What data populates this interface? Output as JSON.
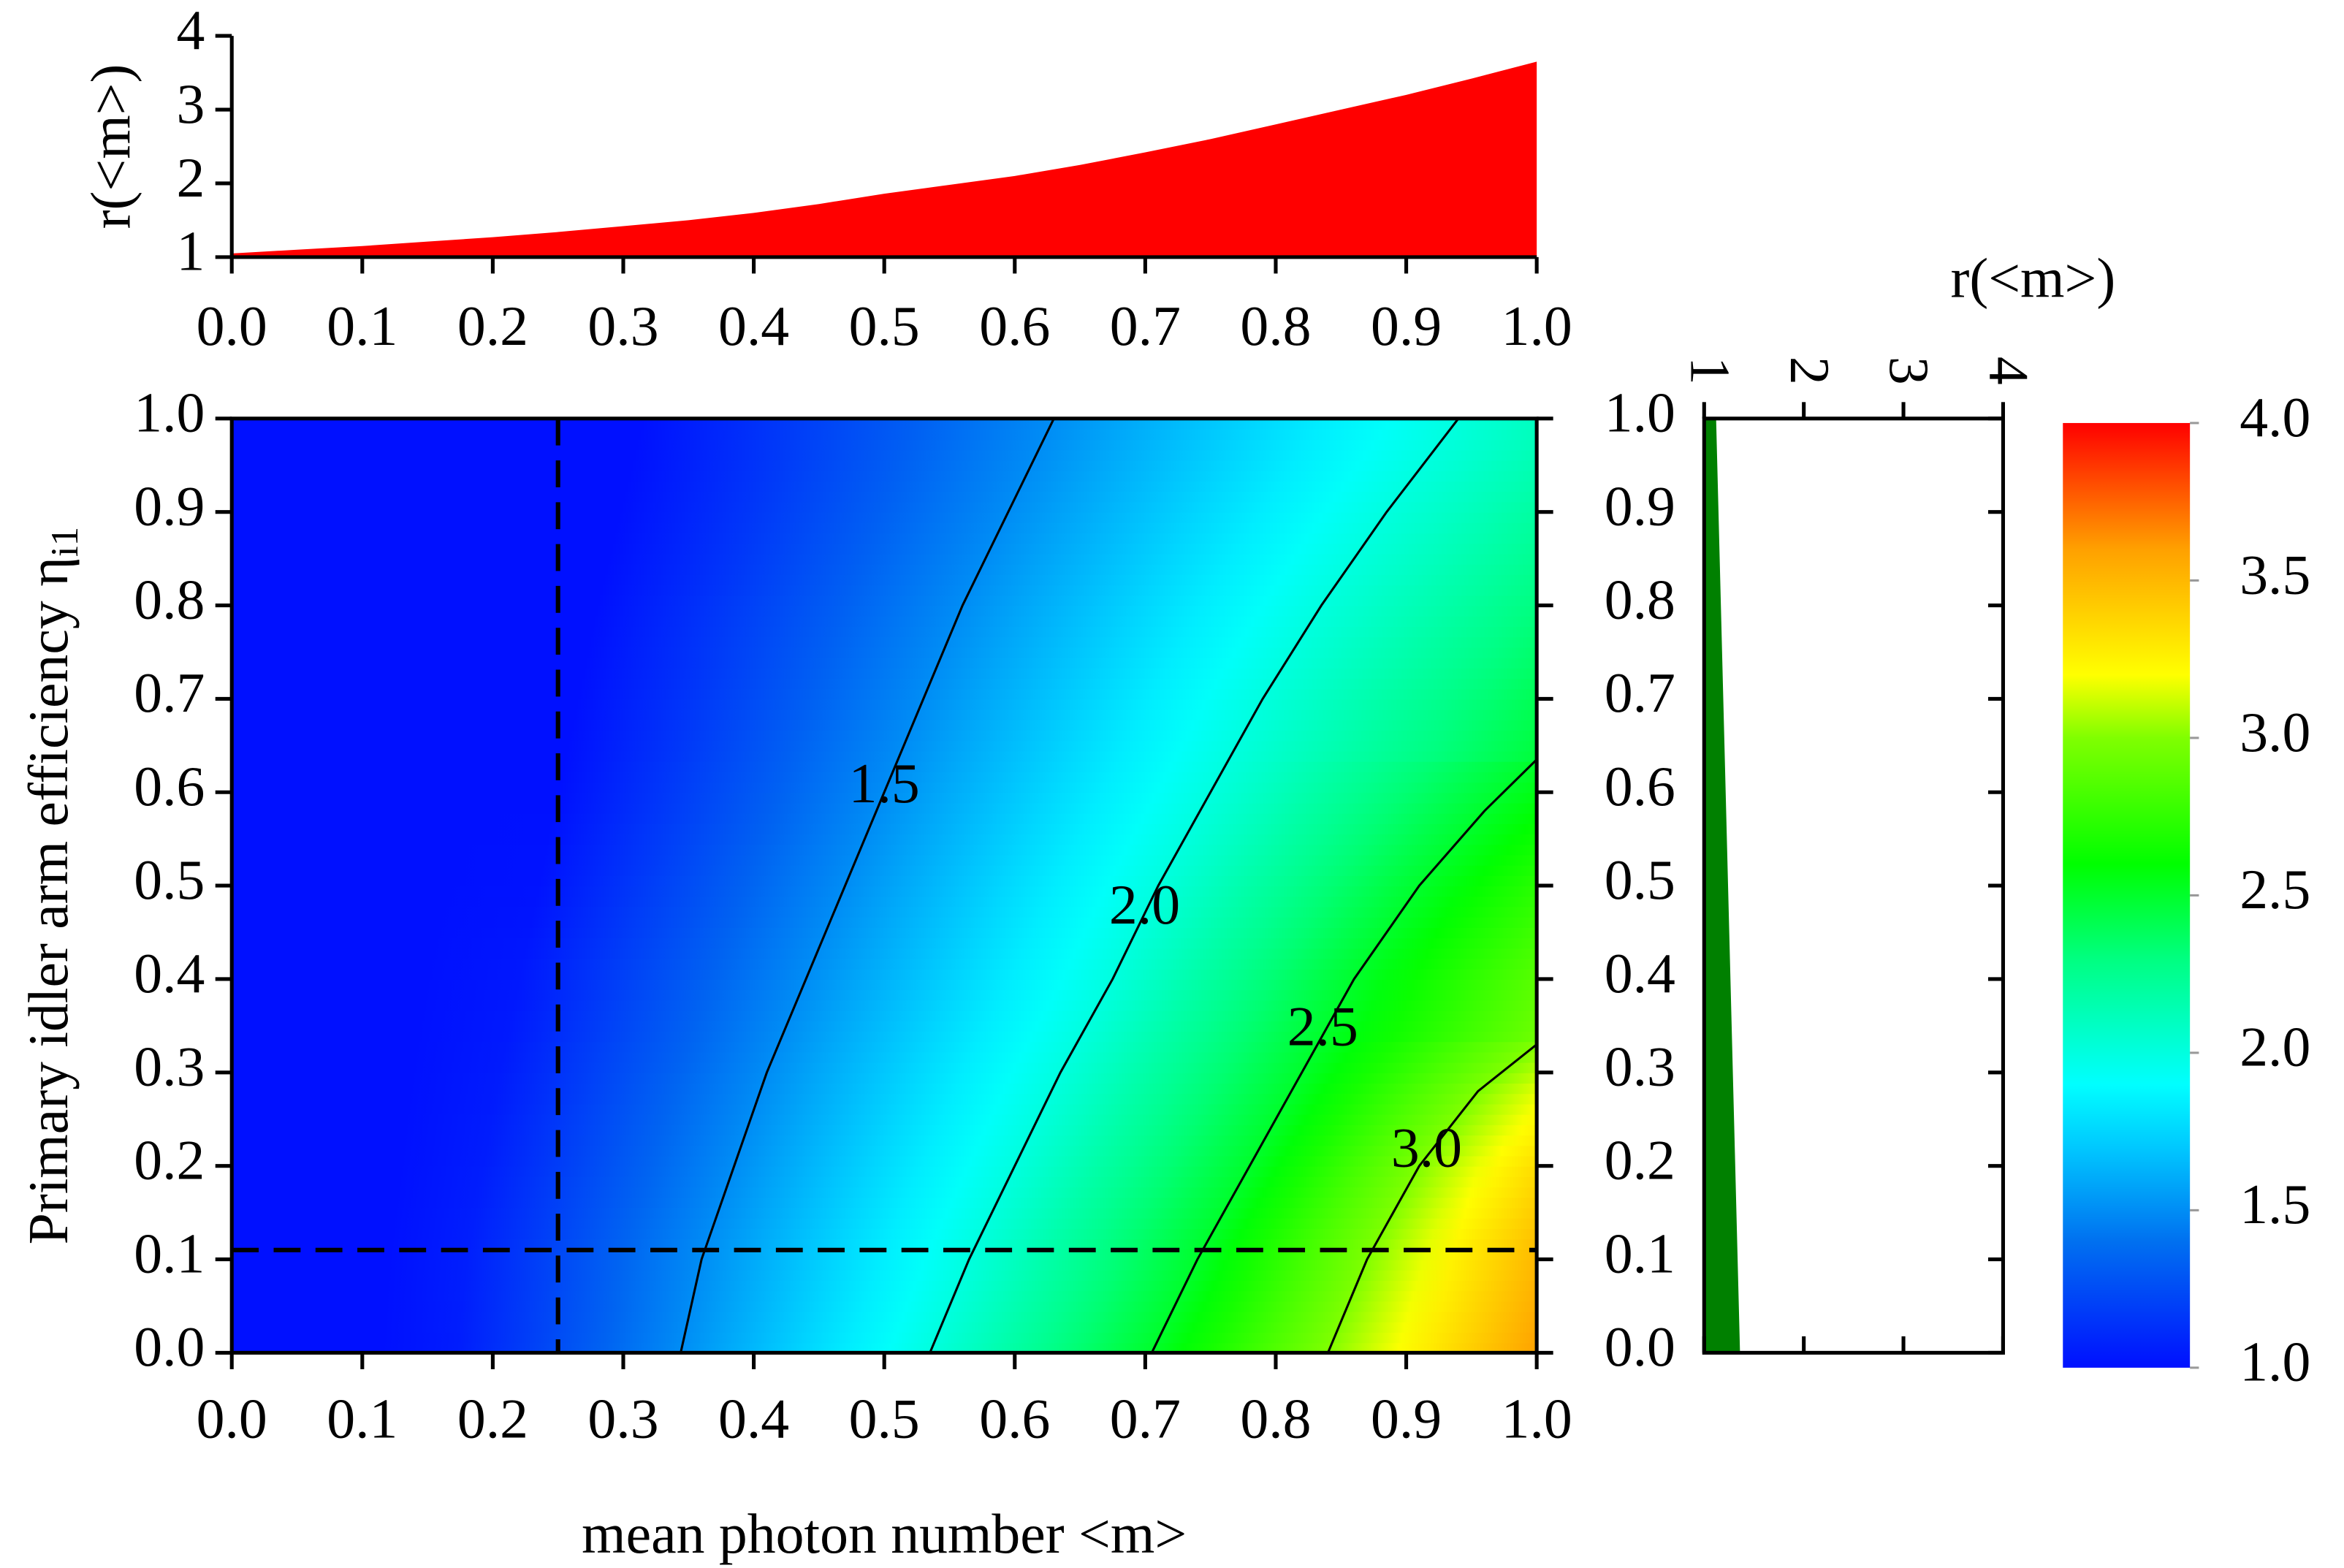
{
  "chart_data": [
    {
      "type": "area",
      "ylabel": "r(<m>)",
      "color": "#ff0000",
      "x": [
        0,
        0.05,
        0.1,
        0.15,
        0.2,
        0.25,
        0.3,
        0.35,
        0.4,
        0.45,
        0.5,
        0.55,
        0.6,
        0.65,
        0.7,
        0.75,
        0.8,
        0.85,
        0.9,
        0.95,
        1.0
      ],
      "values": [
        1.05,
        1.1,
        1.15,
        1.21,
        1.27,
        1.34,
        1.42,
        1.5,
        1.6,
        1.72,
        1.86,
        1.98,
        2.1,
        2.25,
        2.42,
        2.6,
        2.8,
        3.0,
        3.2,
        3.42,
        3.65
      ],
      "xlim": [
        0,
        1
      ],
      "ylim": [
        1,
        4
      ],
      "xticks": [
        {
          "value": 0,
          "label": "0.0"
        },
        0.1,
        0.2,
        0.3,
        0.4,
        0.5,
        0.6,
        0.7,
        0.8,
        0.9,
        {
          "value": 1,
          "label": "1.0"
        }
      ],
      "yticks": [
        1,
        2,
        3,
        4
      ]
    },
    {
      "type": "contour",
      "xlabel": "mean photon number <m>",
      "ylabel": "Primary idler arm efficiency η",
      "ylabel_subscript": "i1",
      "xlim": [
        0,
        1
      ],
      "ylim": [
        0,
        1
      ],
      "xticks": [
        {
          "value": 0,
          "label": "0.0"
        },
        0.1,
        0.2,
        0.3,
        0.4,
        0.5,
        0.6,
        0.7,
        0.8,
        0.9,
        {
          "value": 1,
          "label": "1.0"
        }
      ],
      "yticks": [
        {
          "value": 0,
          "label": "0.0"
        },
        0.1,
        0.2,
        0.3,
        0.4,
        0.5,
        0.6,
        0.7,
        0.8,
        0.9,
        {
          "value": 1,
          "label": "1.0"
        }
      ],
      "contours": [
        {
          "level": 1.5,
          "x": [
            0.344,
            0.36,
            0.385,
            0.41,
            0.44,
            0.47,
            0.5,
            0.53,
            0.56,
            0.595,
            0.63
          ],
          "y": [
            0,
            0.1,
            0.2,
            0.3,
            0.4,
            0.5,
            0.6,
            0.7,
            0.8,
            0.9,
            1.0
          ]
        },
        {
          "level": 2,
          "label": "2.0",
          "x": [
            0.535,
            0.565,
            0.6,
            0.635,
            0.675,
            0.71,
            0.75,
            0.79,
            0.835,
            0.885,
            0.94
          ],
          "y": [
            0,
            0.1,
            0.2,
            0.3,
            0.4,
            0.5,
            0.6,
            0.7,
            0.8,
            0.9,
            1.0
          ]
        },
        {
          "level": 2.5,
          "x": [
            0.705,
            0.74,
            0.78,
            0.82,
            0.86,
            0.91,
            0.96,
            1.0
          ],
          "y": [
            0,
            0.1,
            0.2,
            0.3,
            0.4,
            0.5,
            0.58,
            0.635
          ]
        },
        {
          "level": 3,
          "label": "3.0",
          "x": [
            0.84,
            0.87,
            0.91,
            0.955,
            1.0
          ],
          "y": [
            0,
            0.1,
            0.2,
            0.28,
            0.33
          ]
        }
      ],
      "dashed_x": 0.25,
      "dashed_y": 0.11,
      "colorbar": {
        "lim": [
          1,
          4
        ],
        "ticks": [
          {
            "value": 1,
            "label": "1.0"
          },
          1.5,
          {
            "value": 2,
            "label": "2.0"
          },
          2.5,
          {
            "value": 3,
            "label": "3.0"
          },
          3.5,
          {
            "value": 4,
            "label": "4.0"
          }
        ],
        "colormap": [
          {
            "value": 1,
            "color": "#0010ff"
          },
          {
            "value": 1.4,
            "color": "#0070f0"
          },
          {
            "value": 1.7,
            "color": "#00c8ff"
          },
          {
            "value": 1.9,
            "color": "#00ffff"
          },
          {
            "value": 2.3,
            "color": "#00ff80"
          },
          {
            "value": 2.6,
            "color": "#00ff00"
          },
          {
            "value": 3,
            "color": "#80ff00"
          },
          {
            "value": 3.2,
            "color": "#ffff00"
          },
          {
            "value": 3.6,
            "color": "#ffa000"
          },
          {
            "value": 4,
            "color": "#ff0000"
          }
        ]
      }
    },
    {
      "type": "hbar-area",
      "xlabel": "r(<m>)",
      "color": "#008000",
      "y": [
        0,
        0.25,
        0.5,
        0.75,
        1.0
      ],
      "values": [
        1.36,
        1.3,
        1.24,
        1.18,
        1.12
      ],
      "xlim": [
        1,
        4
      ],
      "xticks": [
        1,
        2,
        3,
        4
      ],
      "ylim": [
        0,
        1
      ],
      "yticks": [
        {
          "value": 0,
          "label": "0.0"
        },
        0.1,
        0.2,
        0.3,
        0.4,
        0.5,
        0.6,
        0.7,
        0.8,
        0.9,
        {
          "value": 1,
          "label": "1.0"
        }
      ]
    }
  ]
}
